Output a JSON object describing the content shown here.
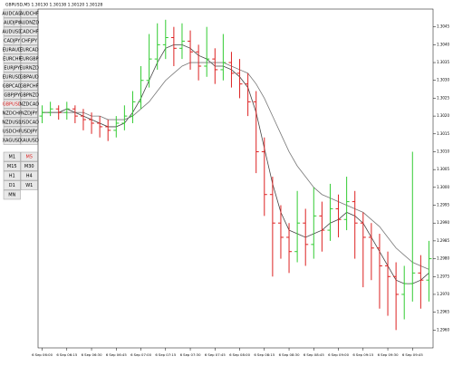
{
  "header": {
    "title": "GBPUSD,M5 1.30130 1.30138 1.30120 1.30128"
  },
  "symbols": [
    "AUDCAD",
    "AUDCHF",
    "AUDJPY",
    "AUDNZD",
    "AUDUSD",
    "CADCHF",
    "CADJPY",
    "CHFJPY",
    "EURAUD",
    "EURCAD",
    "EURCHF",
    "EURGBP",
    "EURJPY",
    "EURNZD",
    "EURUSD",
    "GBPAUD",
    "GBPCAD",
    "GBPCHF",
    "GBPJPY",
    "GBPNZD",
    "GBPUSD",
    "NZDCAD",
    "NZDCHF",
    "NZDJPY",
    "NZDUSD",
    "USDCAD",
    "USDCHF",
    "USDJPY",
    "XAGUSD",
    "XAUUSD"
  ],
  "selected_symbol_index": 20,
  "timeframes": [
    "M1",
    "M5",
    "M15",
    "M30",
    "H1",
    "H4",
    "D1",
    "W1",
    "MN"
  ],
  "selected_timeframe_index": 1,
  "chart_data": {
    "type": "ohlc",
    "categories": [
      "6 Sep 06:00",
      null,
      null,
      "6 Sep 06:15",
      null,
      null,
      "6 Sep 06:30",
      null,
      null,
      "6 Sep 06:45",
      null,
      null,
      "6 Sep 07:00",
      null,
      null,
      "6 Sep 07:15",
      null,
      null,
      "6 Sep 07:30",
      null,
      null,
      "6 Sep 07:45",
      null,
      null,
      "6 Sep 08:00",
      null,
      null,
      "6 Sep 08:15",
      null,
      null,
      "6 Sep 08:30",
      null,
      null,
      "6 Sep 08:45",
      null,
      null,
      "6 Sep 09:00",
      null,
      null,
      "6 Sep 09:15",
      null,
      null,
      "6 Sep 09:30",
      null,
      null,
      "6 Sep 09:45",
      null,
      null
    ],
    "open": [
      1.302,
      1.3021,
      1.3022,
      1.3021,
      1.3022,
      1.302,
      1.3019,
      1.3018,
      1.3017,
      1.3016,
      1.3018,
      1.302,
      1.3024,
      1.303,
      1.3036,
      1.304,
      1.3042,
      1.3039,
      1.3041,
      1.3038,
      1.3034,
      1.3036,
      1.3033,
      1.3035,
      1.3032,
      1.3029,
      1.3024,
      1.301,
      1.2998,
      1.299,
      1.2986,
      1.2982,
      1.299,
      1.2984,
      1.2992,
      1.2988,
      1.2994,
      1.2991,
      1.2996,
      1.299,
      1.2986,
      1.2983,
      1.2978,
      1.2975,
      1.297,
      1.2973,
      1.2976,
      1.2974
    ],
    "high": [
      1.3023,
      1.3024,
      1.3023,
      1.3024,
      1.3023,
      1.3022,
      1.3021,
      1.302,
      1.3019,
      1.302,
      1.3023,
      1.3027,
      1.3034,
      1.3043,
      1.3046,
      1.3047,
      1.3045,
      1.3046,
      1.3044,
      1.304,
      1.3045,
      1.3039,
      1.3043,
      1.3038,
      1.3036,
      1.3032,
      1.3027,
      1.3014,
      1.3003,
      1.2995,
      1.299,
      1.2999,
      1.2994,
      1.3,
      1.2996,
      1.3001,
      1.2998,
      1.3003,
      1.2999,
      1.2993,
      1.299,
      1.2987,
      1.2982,
      1.2979,
      1.2978,
      1.301,
      1.2981,
      1.2985
    ],
    "low": [
      1.3018,
      1.302,
      1.3019,
      1.3019,
      1.3018,
      1.3016,
      1.3015,
      1.3014,
      1.3013,
      1.3014,
      1.3016,
      1.3018,
      1.3022,
      1.3028,
      1.3033,
      1.3036,
      1.3034,
      1.3036,
      1.3033,
      1.303,
      1.3031,
      1.3029,
      1.303,
      1.3028,
      1.3025,
      1.302,
      1.3004,
      1.2992,
      1.2975,
      1.298,
      1.2976,
      1.2979,
      1.2978,
      1.298,
      1.2982,
      1.2985,
      1.2986,
      1.2988,
      1.298,
      1.2972,
      1.2974,
      1.2966,
      1.2964,
      1.296,
      1.2963,
      1.2968,
      1.2966,
      1.2968
    ],
    "close": [
      1.3021,
      1.3022,
      1.3021,
      1.3022,
      1.302,
      1.3019,
      1.3018,
      1.3017,
      1.3016,
      1.3018,
      1.302,
      1.3024,
      1.303,
      1.3036,
      1.304,
      1.3042,
      1.3039,
      1.3041,
      1.3038,
      1.3034,
      1.3036,
      1.3033,
      1.3035,
      1.3032,
      1.3029,
      1.3024,
      1.301,
      1.2998,
      1.299,
      1.2986,
      1.2982,
      1.299,
      1.2984,
      1.2992,
      1.2988,
      1.2994,
      1.2991,
      1.2996,
      1.299,
      1.2986,
      1.2983,
      1.2978,
      1.2975,
      1.297,
      1.2973,
      1.2976,
      1.2974,
      1.298
    ],
    "up_color": "#33cc33",
    "down_color": "#dd2222",
    "lines": [
      {
        "color": "#444444",
        "values": [
          1.3021,
          1.3021,
          1.3021,
          1.3022,
          1.3021,
          1.302,
          1.3019,
          1.3018,
          1.3017,
          1.3017,
          1.3018,
          1.3021,
          1.3025,
          1.303,
          1.3035,
          1.3039,
          1.304,
          1.304,
          1.3039,
          1.3037,
          1.3036,
          1.3034,
          1.3034,
          1.3033,
          1.3031,
          1.3028,
          1.3021,
          1.3011,
          1.3001,
          1.2993,
          1.2988,
          1.2987,
          1.2986,
          1.2987,
          1.2988,
          1.299,
          1.2991,
          1.2993,
          1.2992,
          1.299,
          1.2986,
          1.2982,
          1.2978,
          1.2974,
          1.2973,
          1.2973,
          1.2974,
          1.2976
        ]
      },
      {
        "color": "#777777",
        "values": [
          1.3021,
          1.3021,
          1.3021,
          1.3021,
          1.3021,
          1.3021,
          1.302,
          1.302,
          1.3019,
          1.3019,
          1.3019,
          1.302,
          1.3022,
          1.3024,
          1.3027,
          1.303,
          1.3032,
          1.3034,
          1.3035,
          1.3035,
          1.3035,
          1.3035,
          1.3035,
          1.3034,
          1.3033,
          1.3032,
          1.3029,
          1.3025,
          1.302,
          1.3015,
          1.301,
          1.3006,
          1.3003,
          1.3,
          1.2998,
          1.2997,
          1.2996,
          1.2995,
          1.2994,
          1.2993,
          1.2991,
          1.2989,
          1.2986,
          1.2983,
          1.2981,
          1.2979,
          1.2978,
          1.2977
        ]
      }
    ],
    "ylim": [
      1.2955,
      1.305
    ],
    "yticks": [
      {
        "value": 1.296,
        "label": "1.2960"
      },
      {
        "value": 1.2965,
        "label": "1.2965"
      },
      {
        "value": 1.297,
        "label": "1.2970"
      },
      {
        "value": 1.2975,
        "label": "1.2975"
      },
      {
        "value": 1.298,
        "label": "1.2980"
      },
      {
        "value": 1.2985,
        "label": "1.2985"
      },
      {
        "value": 1.299,
        "label": "1.2990"
      },
      {
        "value": 1.2995,
        "label": "1.2995"
      },
      {
        "value": 1.3,
        "label": "1.3000"
      },
      {
        "value": 1.3005,
        "label": "1.3005"
      },
      {
        "value": 1.301,
        "label": "1.3010"
      },
      {
        "value": 1.3015,
        "label": "1.3015"
      },
      {
        "value": 1.302,
        "label": "1.3020"
      },
      {
        "value": 1.3025,
        "label": "1.3025"
      },
      {
        "value": 1.303,
        "label": "1.3030"
      },
      {
        "value": 1.3035,
        "label": "1.3035"
      },
      {
        "value": 1.304,
        "label": "1.3040"
      },
      {
        "value": 1.3045,
        "label": "1.3045"
      }
    ]
  }
}
